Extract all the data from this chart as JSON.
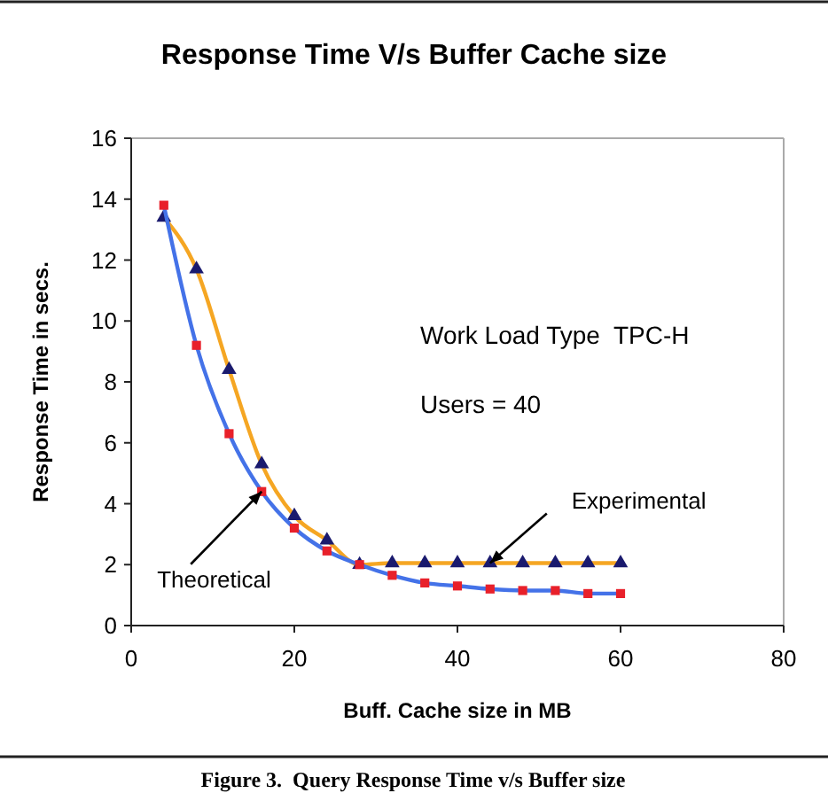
{
  "chart_data": {
    "type": "line",
    "title": "Response Time V/s Buffer Cache size",
    "xlabel": "Buff. Cache size in MB",
    "ylabel": "Response Time in secs.",
    "x": [
      4,
      8,
      12,
      16,
      20,
      24,
      28,
      32,
      36,
      40,
      44,
      48,
      52,
      56,
      60
    ],
    "series": [
      {
        "name": "Theoretical",
        "color": "#4472e8",
        "marker": "square",
        "values": [
          13.8,
          9.2,
          6.3,
          4.4,
          3.2,
          2.45,
          2.0,
          1.65,
          1.4,
          1.3,
          1.2,
          1.15,
          1.15,
          1.05,
          1.05
        ]
      },
      {
        "name": "Experimental",
        "color": "#f5a623",
        "marker": "triangle",
        "values": [
          13.4,
          11.7,
          8.4,
          5.3,
          3.6,
          2.8,
          2.0,
          2.05,
          2.05,
          2.05,
          2.05,
          2.05,
          2.05,
          2.05,
          2.05
        ]
      }
    ],
    "xlim": [
      0,
      80
    ],
    "xticks": [
      0,
      20,
      40,
      60,
      80
    ],
    "ylim": [
      0,
      16
    ],
    "yticks": [
      0,
      2,
      4,
      6,
      8,
      10,
      12,
      14,
      16
    ],
    "grid": false,
    "annotations": [
      "Work Load Type  TPC-H",
      "Users = 40",
      "Figure 3.  Query Response Time v/s Buffer size"
    ]
  }
}
